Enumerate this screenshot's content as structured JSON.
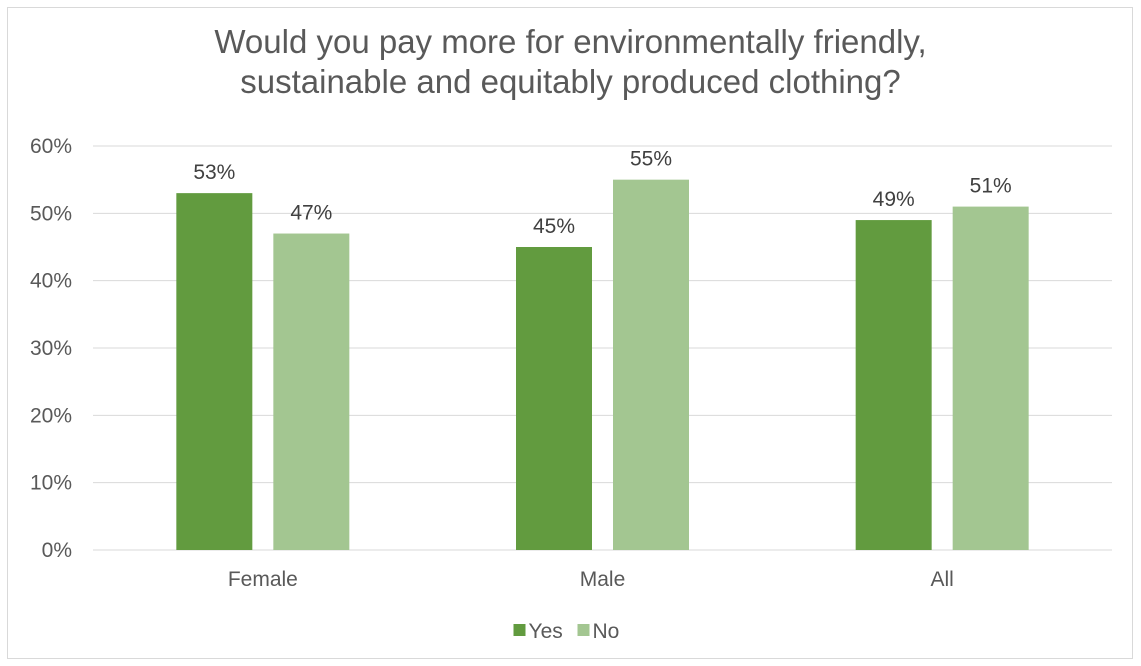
{
  "chart_data": {
    "type": "bar",
    "title_lines": [
      "Would you pay more for environmentally friendly,",
      "sustainable and equitably produced clothing?"
    ],
    "categories": [
      "Female",
      "Male",
      "All"
    ],
    "series": [
      {
        "name": "Yes",
        "values": [
          53,
          45,
          49
        ],
        "labels": [
          "53%",
          "45%",
          "49%"
        ],
        "color": "#629b3f"
      },
      {
        "name": "No",
        "values": [
          47,
          55,
          51
        ],
        "labels": [
          "47%",
          "55%",
          "51%"
        ],
        "color": "#a3c691"
      }
    ],
    "y_ticks": [
      {
        "value": 0,
        "label": "0%"
      },
      {
        "value": 10,
        "label": "10%"
      },
      {
        "value": 20,
        "label": "20%"
      },
      {
        "value": 30,
        "label": "30%"
      },
      {
        "value": 40,
        "label": "40%"
      },
      {
        "value": 50,
        "label": "50%"
      },
      {
        "value": 60,
        "label": "60%"
      }
    ],
    "ylim": [
      0,
      60
    ],
    "grid": true,
    "legend": "bottom-center",
    "gridline_color": "#d9d9d9",
    "text_color": "#595959"
  }
}
